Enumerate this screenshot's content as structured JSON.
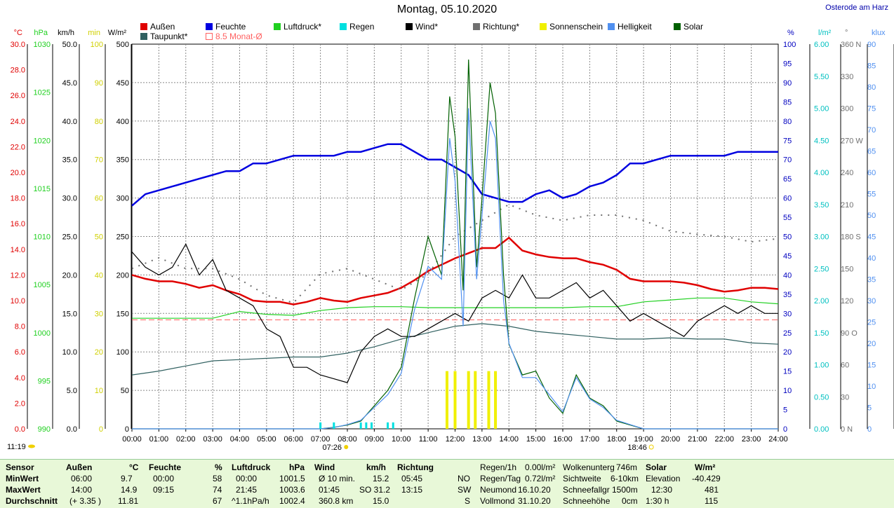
{
  "page": {
    "title": "Montag, 05.10.2020",
    "station": "Osterode am Harz",
    "now": "11:19"
  },
  "legend": [
    {
      "label": "Außen",
      "color": "#e00000"
    },
    {
      "label": "Feuchte",
      "color": "#0000e0"
    },
    {
      "label": "Luftdruck*",
      "color": "#20d020"
    },
    {
      "label": "Regen",
      "color": "#00e0e0"
    },
    {
      "label": "Wind*",
      "color": "#000000"
    },
    {
      "label": "Richtung*",
      "color": "#707070"
    },
    {
      "label": "Sonnenschein",
      "color": "#f0f000"
    },
    {
      "label": "Helligkeit",
      "color": "#5090f0"
    },
    {
      "label": "Solar",
      "color": "#006000"
    },
    {
      "label": "Taupunkt*",
      "color": "#306060"
    },
    {
      "label": "8.5 Monat-Ø",
      "color": "#ff6060"
    }
  ],
  "axes": {
    "temp": {
      "unit": "°C",
      "ticks": [
        "30.0",
        "28.0",
        "26.0",
        "24.0",
        "22.0",
        "20.0",
        "18.0",
        "16.0",
        "14.0",
        "12.0",
        "10.0",
        "8.0",
        "6.0",
        "4.0",
        "2.0",
        "0.0"
      ]
    },
    "pressure": {
      "unit": "hPa",
      "ticks": [
        "1030",
        "1025",
        "1020",
        "1015",
        "1010",
        "1005",
        "1000",
        "995",
        "990"
      ]
    },
    "wind": {
      "unit": "km/h",
      "ticks": [
        "50.0",
        "45.0",
        "40.0",
        "35.0",
        "30.0",
        "25.0",
        "20.0",
        "15.0",
        "10.0",
        "5.0",
        "0.0"
      ]
    },
    "sun": {
      "unit": "min",
      "ticks": [
        "100",
        "90",
        "80",
        "70",
        "60",
        "50",
        "40",
        "30",
        "20",
        "10",
        "0"
      ]
    },
    "solar": {
      "unit": "W/m²",
      "ticks": [
        "500",
        "450",
        "400",
        "350",
        "300",
        "250",
        "200",
        "150",
        "100",
        "50",
        "0"
      ]
    },
    "humidity": {
      "unit": "%",
      "ticks": [
        "100",
        "95",
        "90",
        "85",
        "80",
        "75",
        "70",
        "65",
        "60",
        "55",
        "50",
        "45",
        "40",
        "35",
        "30",
        "25",
        "20",
        "15",
        "10",
        "5",
        "0"
      ]
    },
    "rain": {
      "unit": "l/m²",
      "ticks": [
        "6.00",
        "5.50",
        "5.00",
        "4.50",
        "4.00",
        "3.50",
        "3.00",
        "2.50",
        "2.00",
        "1.50",
        "1.00",
        "0.50",
        "0.00"
      ]
    },
    "direction": {
      "unit": "°",
      "ticks": [
        "360 N",
        "330",
        "300",
        "270 W",
        "240",
        "210",
        "180 S",
        "150",
        "120",
        "90 O",
        "60",
        "30",
        "0 N"
      ]
    },
    "lux": {
      "unit": "klux",
      "ticks": [
        "90",
        "85",
        "80",
        "75",
        "70",
        "65",
        "60",
        "55",
        "50",
        "45",
        "40",
        "35",
        "30",
        "25",
        "20",
        "15",
        "10",
        "5",
        "0"
      ]
    },
    "x_ticks": [
      "00:00",
      "01:00",
      "02:00",
      "03:00",
      "04:00",
      "05:00",
      "06:00",
      "07:00",
      "08:00",
      "09:00",
      "10:00",
      "11:00",
      "12:00",
      "13:00",
      "14:00",
      "15:00",
      "16:00",
      "17:00",
      "18:00",
      "19:00",
      "20:00",
      "21:00",
      "22:00",
      "23:00",
      "24:00"
    ],
    "sunrise": "07:26",
    "sunset": "18:46"
  },
  "chart_data": {
    "type": "line",
    "x_unit": "hour",
    "xlim": [
      0,
      24
    ],
    "monthly_avg_temp": 8.5,
    "series": [
      {
        "name": "Außen",
        "axis": "temp",
        "color": "#e00000",
        "x": [
          0,
          0.5,
          1,
          1.5,
          2,
          2.5,
          3,
          3.5,
          4,
          4.5,
          5,
          5.5,
          6,
          6.5,
          7,
          7.5,
          8,
          8.5,
          9,
          9.5,
          10,
          10.5,
          11,
          11.5,
          12,
          12.5,
          13,
          13.5,
          14,
          14.5,
          15,
          15.5,
          16,
          16.5,
          17,
          17.5,
          18,
          18.5,
          19,
          19.5,
          20,
          20.5,
          21,
          21.5,
          22,
          22.5,
          23,
          23.5,
          24
        ],
        "y": [
          12.0,
          11.7,
          11.5,
          11.5,
          11.3,
          11.0,
          11.2,
          10.8,
          10.5,
          10.0,
          9.9,
          9.9,
          9.7,
          9.9,
          10.2,
          10.0,
          9.9,
          10.2,
          10.4,
          10.6,
          11.0,
          11.6,
          12.3,
          12.8,
          13.3,
          13.7,
          14.1,
          14.1,
          14.9,
          13.9,
          13.6,
          13.4,
          13.3,
          13.3,
          13.0,
          12.8,
          12.4,
          11.7,
          11.5,
          11.5,
          11.5,
          11.4,
          11.2,
          10.9,
          10.7,
          10.8,
          11.0,
          11.0,
          10.9
        ]
      },
      {
        "name": "Feuchte",
        "axis": "humidity",
        "color": "#0000e0",
        "x": [
          0,
          0.5,
          1,
          1.5,
          2,
          2.5,
          3,
          3.5,
          4,
          4.5,
          5,
          5.5,
          6,
          6.5,
          7,
          7.5,
          8,
          8.5,
          9,
          9.5,
          10,
          10.5,
          11,
          11.5,
          12,
          12.5,
          13,
          13.5,
          14,
          14.5,
          15,
          15.5,
          16,
          16.5,
          17,
          17.5,
          18,
          18.5,
          19,
          19.5,
          20,
          20.5,
          21,
          21.5,
          22,
          22.5,
          23,
          23.5,
          24
        ],
        "y": [
          58,
          61,
          62,
          63,
          64,
          65,
          66,
          67,
          67,
          69,
          69,
          70,
          71,
          71,
          71,
          71,
          72,
          72,
          73,
          74,
          74,
          72,
          70,
          70,
          68,
          66,
          61,
          60,
          59,
          59,
          61,
          62,
          60,
          61,
          63,
          64,
          66,
          69,
          69,
          70,
          71,
          71,
          71,
          71,
          71,
          72,
          72,
          72,
          72
        ]
      },
      {
        "name": "Luftdruck*",
        "axis": "pressure",
        "color": "#20d020",
        "x": [
          0,
          1,
          2,
          3,
          4,
          5,
          6,
          7,
          8,
          9,
          10,
          11,
          12,
          13,
          14,
          15,
          16,
          17,
          18,
          19,
          20,
          21,
          22,
          23,
          24
        ],
        "y": [
          1001.5,
          1001.5,
          1001.5,
          1001.5,
          1002.2,
          1001.9,
          1001.8,
          1002.3,
          1002.6,
          1002.7,
          1002.7,
          1002.6,
          1002.6,
          1002.6,
          1002.6,
          1002.6,
          1002.6,
          1002.7,
          1002.7,
          1003.2,
          1003.4,
          1003.6,
          1003.6,
          1003.2,
          1003.0
        ]
      },
      {
        "name": "Taupunkt*",
        "axis": "temp",
        "color": "#306060",
        "x": [
          0,
          1,
          2,
          3,
          4,
          5,
          6,
          7,
          8,
          9,
          10,
          11,
          12,
          13,
          14,
          15,
          16,
          17,
          18,
          19,
          20,
          21,
          22,
          23,
          24
        ],
        "y": [
          4.2,
          4.5,
          4.9,
          5.3,
          5.4,
          5.5,
          5.6,
          5.6,
          5.9,
          6.4,
          7.0,
          7.5,
          8.0,
          8.2,
          8.0,
          7.6,
          7.4,
          7.2,
          7.0,
          7.0,
          7.1,
          7.0,
          7.0,
          6.7,
          6.6
        ]
      },
      {
        "name": "Wind*",
        "axis": "wind",
        "color": "#000000",
        "x": [
          0,
          0.5,
          1,
          1.5,
          2,
          2.5,
          3,
          3.5,
          4,
          4.5,
          5,
          5.5,
          6,
          6.5,
          7,
          7.5,
          8,
          8.5,
          9,
          9.5,
          10,
          10.5,
          11,
          11.5,
          12,
          12.5,
          13,
          13.5,
          14,
          14.5,
          15,
          15.5,
          16,
          16.5,
          17,
          17.5,
          18,
          18.5,
          19,
          19.5,
          20,
          20.5,
          21,
          21.5,
          22,
          22.5,
          23,
          23.5,
          24
        ],
        "y": [
          23,
          21,
          20,
          21,
          24,
          20,
          22,
          18,
          17,
          16,
          13,
          12,
          8,
          8,
          7,
          6.5,
          6,
          10,
          12,
          13,
          12,
          12,
          13,
          14,
          15,
          14,
          17,
          18,
          17,
          20,
          17,
          17,
          18,
          19,
          17,
          18,
          16,
          14,
          15,
          14,
          13,
          12,
          14,
          15,
          16,
          15,
          16,
          15,
          15
        ]
      },
      {
        "name": "Richtung*",
        "axis": "direction",
        "color": "#707070",
        "x": [
          0,
          1,
          2,
          3,
          4,
          5,
          6,
          7,
          8,
          9,
          10,
          11,
          12,
          13,
          14,
          15,
          16,
          17,
          18,
          19,
          20,
          21,
          22,
          23,
          24
        ],
        "y": [
          150,
          160,
          150,
          150,
          140,
          125,
          118,
          145,
          150,
          140,
          130,
          145,
          180,
          195,
          210,
          200,
          195,
          200,
          200,
          195,
          185,
          182,
          180,
          175,
          178
        ]
      },
      {
        "name": "Solar",
        "axis": "solar",
        "color": "#006000",
        "x": [
          0,
          7,
          7.5,
          8,
          8.5,
          9,
          9.5,
          10,
          10.5,
          11,
          11.5,
          11.8,
          12,
          12.3,
          12.5,
          12.8,
          13,
          13.3,
          13.5,
          13.8,
          14,
          14.5,
          15,
          15.5,
          16,
          16.5,
          17,
          17.5,
          18,
          18.5,
          19,
          24
        ],
        "y": [
          0,
          0,
          2,
          5,
          10,
          30,
          50,
          80,
          170,
          250,
          200,
          432,
          380,
          180,
          480,
          210,
          300,
          450,
          410,
          200,
          110,
          70,
          75,
          40,
          20,
          70,
          40,
          30,
          10,
          5,
          0,
          0
        ]
      },
      {
        "name": "Helligkeit",
        "axis": "lux",
        "color": "#5090f0",
        "x": [
          0,
          7,
          7.5,
          8,
          8.5,
          9,
          9.5,
          10,
          10.5,
          11,
          11.5,
          11.8,
          12,
          12.3,
          12.5,
          12.8,
          13,
          13.3,
          13.5,
          13.8,
          14,
          14.5,
          15,
          15.5,
          16,
          16.5,
          17,
          17.5,
          18,
          18.5,
          19,
          24
        ],
        "y": [
          0,
          0,
          0.3,
          1,
          2,
          5,
          8,
          13,
          28,
          38,
          35,
          68,
          58,
          24,
          75,
          35,
          50,
          72,
          68,
          30,
          20,
          12,
          12,
          8,
          4,
          12,
          7,
          5,
          2,
          1,
          0,
          0
        ]
      },
      {
        "name": "Sonnenschein",
        "axis": "sun",
        "color": "#f0f000",
        "type": "bar",
        "x": [
          11.7,
          12.0,
          12.5,
          12.75,
          13.25,
          13.5
        ],
        "y": [
          15,
          15,
          15,
          15,
          15,
          15
        ]
      },
      {
        "name": "Regen",
        "axis": "rain",
        "color": "#00e0e0",
        "type": "bar",
        "x": [
          7.0,
          7.5,
          8.5,
          8.7,
          8.9,
          9.5,
          9.7
        ],
        "y": [
          0.1,
          0.1,
          0.1,
          0.1,
          0.1,
          0.1,
          0.1
        ]
      }
    ]
  },
  "stats": {
    "sensor": {
      "head": "Sensor",
      "rows": [
        "MinWert",
        "MaxWert",
        "Durchschnitt"
      ]
    },
    "aussen": {
      "head": "Außen",
      "unit": "°C",
      "rows": [
        [
          "06:00",
          "9.7"
        ],
        [
          "14:00",
          "14.9"
        ],
        [
          "(+ 3.35 )",
          "11.81"
        ]
      ]
    },
    "feuchte": {
      "head": "Feuchte",
      "unit": "%",
      "rows": [
        [
          "00:00",
          "58"
        ],
        [
          "09:15",
          "74"
        ],
        [
          "",
          "67"
        ]
      ]
    },
    "luftdruck": {
      "head": "Luftdruck",
      "unit": "hPa",
      "rows": [
        [
          "00:00",
          "1001.5"
        ],
        [
          "21:45",
          "1003.6"
        ],
        [
          "^1.1hPa/h",
          "1002.4"
        ]
      ]
    },
    "wind": {
      "head": "Wind",
      "unit": "km/h",
      "rows": [
        [
          "Ø 10 min.",
          "15.2"
        ],
        [
          "01:45",
          "SO 31.2"
        ],
        [
          "360.8 km",
          "15.0"
        ]
      ]
    },
    "richtung": {
      "head": "Richtung",
      "rows": [
        [
          "05:45",
          "NO"
        ],
        [
          "13:15",
          "SW"
        ],
        [
          "",
          "S"
        ]
      ]
    },
    "regen": {
      "rows": [
        [
          "Regen/1h",
          "0.00l/m²"
        ],
        [
          "Regen/Tag",
          "0.72l/m²"
        ],
        [
          "Neumond",
          "16.10.20"
        ],
        [
          "Vollmond",
          "31.10.20"
        ]
      ]
    },
    "wolken": {
      "rows": [
        [
          "Wolkenunterg",
          "746m"
        ],
        [
          "Sichtweite",
          "6-10km"
        ],
        [
          "Schneefallgr",
          "1500m"
        ],
        [
          "Schneehöhe",
          "0cm"
        ]
      ]
    },
    "solar": {
      "head": "Solar",
      "unit": "W/m²",
      "rows": [
        [
          "Elevation",
          "-40.429"
        ],
        [
          "12:30",
          "481"
        ],
        [
          "1:30 h",
          "115"
        ]
      ]
    }
  }
}
